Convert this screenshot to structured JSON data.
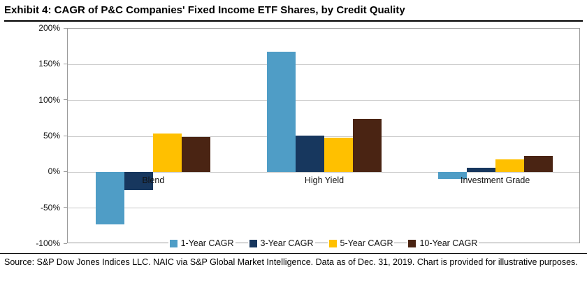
{
  "header": {
    "title": "Exhibit 4: CAGR of P&C Companies' Fixed Income ETF Shares, by Credit Quality"
  },
  "footer": {
    "source": "Source: S&P Dow Jones Indices LLC. NAIC via S&P Global Market Intelligence. Data as of Dec. 31, 2019. Chart is provided for illustrative purposes."
  },
  "chart_data": {
    "type": "bar",
    "title": "Exhibit 4: CAGR of P&C Companies' Fixed Income ETF Shares, by Credit Quality",
    "categories": [
      "Blend",
      "High Yield",
      "Investment Grade"
    ],
    "series": [
      {
        "name": "1-Year CAGR",
        "color": "#4F9DC6",
        "values": [
          -73,
          168,
          -9
        ]
      },
      {
        "name": "3-Year CAGR",
        "color": "#17375E",
        "values": [
          -25,
          51,
          6
        ]
      },
      {
        "name": "5-Year CAGR",
        "color": "#FFC000",
        "values": [
          54,
          48,
          18
        ]
      },
      {
        "name": "10-Year CAGR",
        "color": "#4A2413",
        "values": [
          49,
          74,
          23
        ]
      }
    ],
    "ylim": [
      -100,
      200
    ],
    "ytick_step": 50,
    "ytick_labels": [
      "200%",
      "150%",
      "100%",
      "50%",
      "0%",
      "-50%",
      "-100%"
    ],
    "grid": true,
    "legend_position": "bottom",
    "xlabel": "",
    "ylabel": ""
  }
}
